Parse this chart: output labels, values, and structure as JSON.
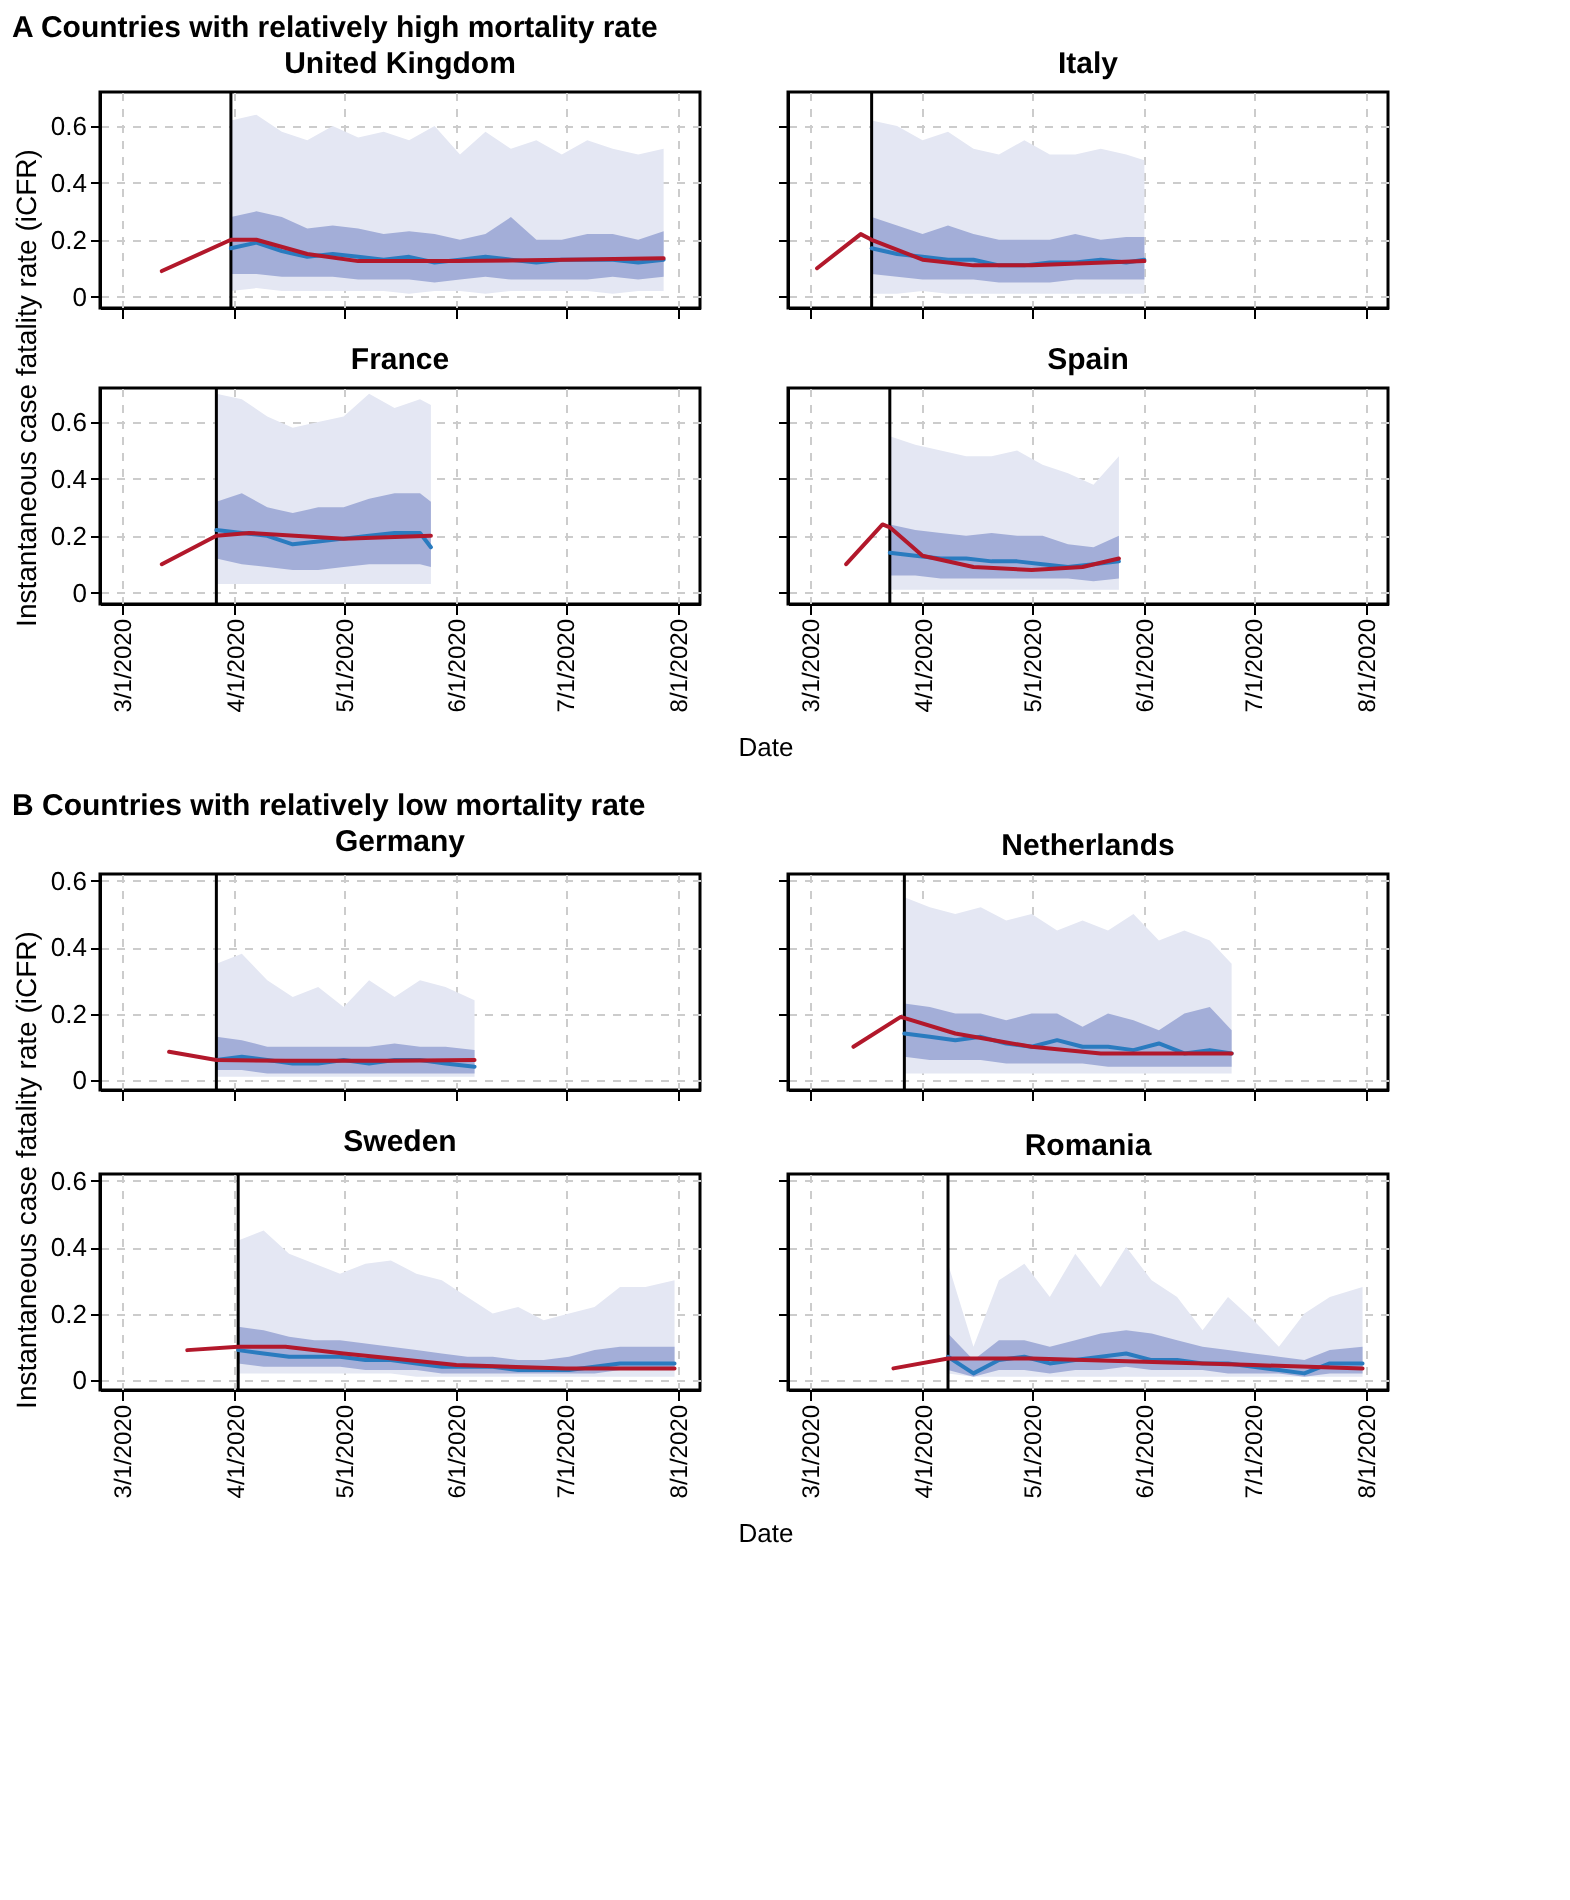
{
  "chart_data": [
    {
      "type": "line",
      "title": "United Kingdom",
      "annotations": [
        "A Countries with relatively high mortality rate"
      ],
      "ylabel": "Instantaneous case fatality rate (iCFR)",
      "tick_labels": "y",
      "grid": true,
      "xlim": [
        "2020-02-24",
        "2020-08-07"
      ],
      "ylim": [
        -0.04,
        0.72
      ],
      "xticks": [
        {
          "value": "2020-03-01",
          "label": null
        },
        {
          "value": "2020-04-01",
          "label": null
        },
        {
          "value": "2020-05-01",
          "label": null
        },
        {
          "value": "2020-06-01",
          "label": null
        },
        {
          "value": "2020-07-01",
          "label": null
        },
        {
          "value": "2020-08-01",
          "label": null
        }
      ],
      "yticks": [
        0,
        0.2,
        0.4,
        0.6
      ],
      "ref_lines": [
        {
          "axis": "x",
          "value": "2020-03-31",
          "color": "#000000"
        }
      ],
      "series": [
        {
          "type": "area",
          "color": "#e4e7f3",
          "x": [
            "2020-03-31",
            "2020-04-07",
            "2020-04-14",
            "2020-04-21",
            "2020-04-28",
            "2020-05-05",
            "2020-05-12",
            "2020-05-19",
            "2020-05-26",
            "2020-06-02",
            "2020-06-09",
            "2020-06-16",
            "2020-06-23",
            "2020-06-30",
            "2020-07-07",
            "2020-07-14",
            "2020-07-21",
            "2020-07-28"
          ],
          "values": [
            null,
            null,
            null,
            null,
            null,
            null,
            null,
            null,
            null,
            null,
            null,
            null,
            null,
            null,
            null,
            null,
            null,
            null
          ],
          "lower": [
            0.02,
            0.03,
            0.02,
            0.02,
            0.02,
            0.02,
            0.02,
            0.01,
            0.02,
            0.02,
            0.01,
            0.02,
            0.02,
            0.02,
            0.02,
            0.01,
            0.02,
            0.02
          ],
          "upper": [
            0.62,
            0.64,
            0.58,
            0.55,
            0.6,
            0.56,
            0.58,
            0.55,
            0.6,
            0.5,
            0.58,
            0.52,
            0.55,
            0.5,
            0.55,
            0.52,
            0.5,
            0.52
          ]
        },
        {
          "type": "area",
          "color": "#a3aed8",
          "x": [
            "2020-03-31",
            "2020-04-07",
            "2020-04-14",
            "2020-04-21",
            "2020-04-28",
            "2020-05-05",
            "2020-05-12",
            "2020-05-19",
            "2020-05-26",
            "2020-06-02",
            "2020-06-09",
            "2020-06-16",
            "2020-06-23",
            "2020-06-30",
            "2020-07-07",
            "2020-07-14",
            "2020-07-21",
            "2020-07-28"
          ],
          "values": [
            null,
            null,
            null,
            null,
            null,
            null,
            null,
            null,
            null,
            null,
            null,
            null,
            null,
            null,
            null,
            null,
            null,
            null
          ],
          "lower": [
            0.08,
            0.08,
            0.07,
            0.07,
            0.07,
            0.06,
            0.06,
            0.06,
            0.05,
            0.06,
            0.07,
            0.06,
            0.06,
            0.06,
            0.06,
            0.07,
            0.06,
            0.07
          ],
          "upper": [
            0.28,
            0.3,
            0.28,
            0.24,
            0.25,
            0.24,
            0.22,
            0.23,
            0.22,
            0.2,
            0.22,
            0.28,
            0.2,
            0.2,
            0.22,
            0.22,
            0.2,
            0.23
          ]
        },
        {
          "type": "line",
          "color": "#2a7bbf",
          "x": [
            "2020-03-31",
            "2020-04-07",
            "2020-04-14",
            "2020-04-21",
            "2020-04-28",
            "2020-05-05",
            "2020-05-12",
            "2020-05-19",
            "2020-05-26",
            "2020-06-02",
            "2020-06-09",
            "2020-06-16",
            "2020-06-23",
            "2020-06-30",
            "2020-07-07",
            "2020-07-14",
            "2020-07-21",
            "2020-07-28"
          ],
          "values": [
            0.17,
            0.19,
            0.16,
            0.14,
            0.15,
            0.14,
            0.13,
            0.14,
            0.12,
            0.13,
            0.14,
            0.13,
            0.12,
            0.13,
            0.13,
            0.13,
            0.12,
            0.13
          ]
        },
        {
          "type": "line",
          "color": "#b2182b",
          "x": [
            "2020-03-12",
            "2020-03-31",
            "2020-04-07",
            "2020-04-21",
            "2020-05-05",
            "2020-06-01",
            "2020-07-01",
            "2020-07-28"
          ],
          "values": [
            0.09,
            0.2,
            0.2,
            0.15,
            0.125,
            0.125,
            0.13,
            0.135
          ]
        }
      ]
    },
    {
      "type": "line",
      "title": "Italy",
      "tick_labels": false,
      "grid": true,
      "xlim": [
        "2020-02-24",
        "2020-08-07"
      ],
      "ylim": [
        -0.04,
        0.72
      ],
      "xticks": [
        {
          "value": "2020-03-01",
          "label": null
        },
        {
          "value": "2020-04-01",
          "label": null
        },
        {
          "value": "2020-05-01",
          "label": null
        },
        {
          "value": "2020-06-01",
          "label": null
        },
        {
          "value": "2020-07-01",
          "label": null
        },
        {
          "value": "2020-08-01",
          "label": null
        }
      ],
      "yticks": [
        0,
        0.2,
        0.4,
        0.6
      ],
      "ref_lines": [
        {
          "axis": "x",
          "value": "2020-03-18",
          "color": "#000000"
        }
      ],
      "series": [
        {
          "type": "area",
          "color": "#e4e7f3",
          "x": [
            "2020-03-18",
            "2020-03-25",
            "2020-04-01",
            "2020-04-08",
            "2020-04-15",
            "2020-04-22",
            "2020-04-29",
            "2020-05-06",
            "2020-05-13",
            "2020-05-20",
            "2020-05-27",
            "2020-06-01"
          ],
          "values": [
            null,
            null,
            null,
            null,
            null,
            null,
            null,
            null,
            null,
            null,
            null,
            null
          ],
          "lower": [
            0.01,
            0.01,
            0.02,
            0.01,
            0.01,
            0.01,
            0.01,
            0.01,
            0.01,
            0.01,
            0.01,
            0.01
          ],
          "upper": [
            0.62,
            0.6,
            0.55,
            0.58,
            0.52,
            0.5,
            0.55,
            0.5,
            0.5,
            0.52,
            0.5,
            0.48
          ]
        },
        {
          "type": "area",
          "color": "#a3aed8",
          "x": [
            "2020-03-18",
            "2020-03-25",
            "2020-04-01",
            "2020-04-08",
            "2020-04-15",
            "2020-04-22",
            "2020-04-29",
            "2020-05-06",
            "2020-05-13",
            "2020-05-20",
            "2020-05-27",
            "2020-06-01"
          ],
          "values": [
            null,
            null,
            null,
            null,
            null,
            null,
            null,
            null,
            null,
            null,
            null,
            null
          ],
          "lower": [
            0.08,
            0.07,
            0.06,
            0.06,
            0.06,
            0.05,
            0.05,
            0.05,
            0.06,
            0.06,
            0.06,
            0.06
          ],
          "upper": [
            0.28,
            0.25,
            0.22,
            0.25,
            0.22,
            0.2,
            0.2,
            0.2,
            0.22,
            0.2,
            0.21,
            0.21
          ]
        },
        {
          "type": "line",
          "color": "#2a7bbf",
          "x": [
            "2020-03-18",
            "2020-03-25",
            "2020-04-01",
            "2020-04-08",
            "2020-04-15",
            "2020-04-22",
            "2020-04-29",
            "2020-05-06",
            "2020-05-13",
            "2020-05-20",
            "2020-05-27",
            "2020-06-01"
          ],
          "values": [
            0.17,
            0.15,
            0.14,
            0.13,
            0.13,
            0.11,
            0.11,
            0.12,
            0.12,
            0.13,
            0.12,
            0.13
          ]
        },
        {
          "type": "line",
          "color": "#b2182b",
          "x": [
            "2020-03-03",
            "2020-03-15",
            "2020-03-18",
            "2020-04-01",
            "2020-04-15",
            "2020-05-01",
            "2020-06-01"
          ],
          "values": [
            0.1,
            0.22,
            0.2,
            0.13,
            0.11,
            0.11,
            0.125
          ]
        }
      ]
    },
    {
      "type": "line",
      "title": "France",
      "grid": true,
      "xlim": [
        "2020-02-24",
        "2020-08-07"
      ],
      "ylim": [
        -0.04,
        0.72
      ],
      "xticks": [
        {
          "value": "2020-03-01",
          "label": "3/1/2020"
        },
        {
          "value": "2020-04-01",
          "label": "4/1/2020"
        },
        {
          "value": "2020-05-01",
          "label": "5/1/2020"
        },
        {
          "value": "2020-06-01",
          "label": "6/1/2020"
        },
        {
          "value": "2020-07-01",
          "label": "7/1/2020"
        },
        {
          "value": "2020-08-01",
          "label": "8/1/2020"
        }
      ],
      "yticks": [
        0,
        0.2,
        0.4,
        0.6
      ],
      "ref_lines": [
        {
          "axis": "x",
          "value": "2020-03-27",
          "color": "#000000"
        }
      ],
      "series": [
        {
          "type": "area",
          "color": "#e4e7f3",
          "x": [
            "2020-03-27",
            "2020-04-03",
            "2020-04-10",
            "2020-04-17",
            "2020-04-24",
            "2020-05-01",
            "2020-05-08",
            "2020-05-15",
            "2020-05-22",
            "2020-05-25"
          ],
          "values": [
            null,
            null,
            null,
            null,
            null,
            null,
            null,
            null,
            null,
            null
          ],
          "lower": [
            0.03,
            0.03,
            0.03,
            0.03,
            0.03,
            0.03,
            0.03,
            0.03,
            0.03,
            0.03
          ],
          "upper": [
            0.7,
            0.68,
            0.62,
            0.58,
            0.6,
            0.62,
            0.7,
            0.65,
            0.68,
            0.66
          ]
        },
        {
          "type": "area",
          "color": "#a3aed8",
          "x": [
            "2020-03-27",
            "2020-04-03",
            "2020-04-10",
            "2020-04-17",
            "2020-04-24",
            "2020-05-01",
            "2020-05-08",
            "2020-05-15",
            "2020-05-22",
            "2020-05-25"
          ],
          "values": [
            null,
            null,
            null,
            null,
            null,
            null,
            null,
            null,
            null,
            null
          ],
          "lower": [
            0.12,
            0.1,
            0.09,
            0.08,
            0.08,
            0.09,
            0.1,
            0.1,
            0.1,
            0.09
          ],
          "upper": [
            0.32,
            0.35,
            0.3,
            0.28,
            0.3,
            0.3,
            0.33,
            0.35,
            0.35,
            0.32
          ]
        },
        {
          "type": "line",
          "color": "#2a7bbf",
          "x": [
            "2020-03-27",
            "2020-04-03",
            "2020-04-10",
            "2020-04-17",
            "2020-04-24",
            "2020-05-01",
            "2020-05-08",
            "2020-05-15",
            "2020-05-22",
            "2020-05-25"
          ],
          "values": [
            0.22,
            0.21,
            0.2,
            0.17,
            0.18,
            0.19,
            0.2,
            0.21,
            0.21,
            0.16
          ]
        },
        {
          "type": "line",
          "color": "#b2182b",
          "x": [
            "2020-03-12",
            "2020-03-27",
            "2020-04-05",
            "2020-05-01",
            "2020-05-25"
          ],
          "values": [
            0.1,
            0.2,
            0.21,
            0.19,
            0.2
          ]
        }
      ]
    },
    {
      "type": "line",
      "title": "Spain",
      "tick_labels": "x",
      "grid": true,
      "xlabel": "Date",
      "xlim": [
        "2020-02-24",
        "2020-08-07"
      ],
      "ylim": [
        -0.04,
        0.72
      ],
      "xticks": [
        {
          "value": "2020-03-01",
          "label": "3/1/2020"
        },
        {
          "value": "2020-04-01",
          "label": "4/1/2020"
        },
        {
          "value": "2020-05-01",
          "label": "5/1/2020"
        },
        {
          "value": "2020-06-01",
          "label": "6/1/2020"
        },
        {
          "value": "2020-07-01",
          "label": "7/1/2020"
        },
        {
          "value": "2020-08-01",
          "label": "8/1/2020"
        }
      ],
      "yticks": [
        0,
        0.2,
        0.4,
        0.6
      ],
      "ref_lines": [
        {
          "axis": "x",
          "value": "2020-03-23",
          "color": "#000000"
        }
      ],
      "series": [
        {
          "type": "area",
          "color": "#e4e7f3",
          "x": [
            "2020-03-23",
            "2020-03-30",
            "2020-04-06",
            "2020-04-13",
            "2020-04-20",
            "2020-04-27",
            "2020-05-04",
            "2020-05-11",
            "2020-05-18",
            "2020-05-25"
          ],
          "values": [
            null,
            null,
            null,
            null,
            null,
            null,
            null,
            null,
            null,
            null
          ],
          "lower": [
            0.01,
            0.01,
            0.01,
            0.01,
            0.01,
            0.01,
            0.01,
            0.01,
            0.01,
            0.01
          ],
          "upper": [
            0.55,
            0.52,
            0.5,
            0.48,
            0.48,
            0.5,
            0.45,
            0.42,
            0.38,
            0.48
          ]
        },
        {
          "type": "area",
          "color": "#a3aed8",
          "x": [
            "2020-03-23",
            "2020-03-30",
            "2020-04-06",
            "2020-04-13",
            "2020-04-20",
            "2020-04-27",
            "2020-05-04",
            "2020-05-11",
            "2020-05-18",
            "2020-05-25"
          ],
          "values": [
            null,
            null,
            null,
            null,
            null,
            null,
            null,
            null,
            null,
            null
          ],
          "lower": [
            0.06,
            0.06,
            0.05,
            0.05,
            0.05,
            0.05,
            0.05,
            0.05,
            0.04,
            0.05
          ],
          "upper": [
            0.24,
            0.22,
            0.21,
            0.2,
            0.21,
            0.2,
            0.2,
            0.17,
            0.16,
            0.2
          ]
        },
        {
          "type": "line",
          "color": "#2a7bbf",
          "x": [
            "2020-03-23",
            "2020-03-30",
            "2020-04-06",
            "2020-04-13",
            "2020-04-20",
            "2020-04-27",
            "2020-05-04",
            "2020-05-11",
            "2020-05-18",
            "2020-05-25"
          ],
          "values": [
            0.14,
            0.13,
            0.12,
            0.12,
            0.11,
            0.11,
            0.1,
            0.09,
            0.1,
            0.11
          ]
        },
        {
          "type": "line",
          "color": "#b2182b",
          "x": [
            "2020-03-11",
            "2020-03-21",
            "2020-03-23",
            "2020-04-01",
            "2020-04-15",
            "2020-05-01",
            "2020-05-15",
            "2020-05-25"
          ],
          "values": [
            0.1,
            0.24,
            0.23,
            0.13,
            0.09,
            0.08,
            0.09,
            0.12
          ]
        }
      ]
    },
    {
      "type": "line",
      "title": "Germany",
      "annotations": [
        "B Countries with relatively low mortality rate"
      ],
      "ylabel": "Instantaneous case fatality rate (iCFR)",
      "tick_labels": "y",
      "grid": true,
      "xlim": [
        "2020-02-24",
        "2020-08-07"
      ],
      "ylim": [
        -0.03,
        0.62
      ],
      "xticks": [
        {
          "value": "2020-03-01",
          "label": null
        },
        {
          "value": "2020-04-01",
          "label": null
        },
        {
          "value": "2020-05-01",
          "label": null
        },
        {
          "value": "2020-06-01",
          "label": null
        },
        {
          "value": "2020-07-01",
          "label": null
        },
        {
          "value": "2020-08-01",
          "label": null
        }
      ],
      "yticks": [
        0,
        0.2,
        0.4,
        0.6
      ],
      "ref_lines": [
        {
          "axis": "x",
          "value": "2020-03-27",
          "color": "#000000"
        }
      ],
      "series": [
        {
          "type": "area",
          "color": "#e4e7f3",
          "x": [
            "2020-03-27",
            "2020-04-03",
            "2020-04-10",
            "2020-04-17",
            "2020-04-24",
            "2020-05-01",
            "2020-05-08",
            "2020-05-15",
            "2020-05-22",
            "2020-05-29",
            "2020-06-06"
          ],
          "values": [
            null,
            null,
            null,
            null,
            null,
            null,
            null,
            null,
            null,
            null,
            null
          ],
          "lower": [
            0.01,
            0.01,
            0.01,
            0.01,
            0.01,
            0.01,
            0.01,
            0.01,
            0.01,
            0.01,
            0.01
          ],
          "upper": [
            0.35,
            0.38,
            0.3,
            0.25,
            0.28,
            0.22,
            0.3,
            0.25,
            0.3,
            0.28,
            0.24
          ]
        },
        {
          "type": "area",
          "color": "#a3aed8",
          "x": [
            "2020-03-27",
            "2020-04-03",
            "2020-04-10",
            "2020-04-17",
            "2020-04-24",
            "2020-05-01",
            "2020-05-08",
            "2020-05-15",
            "2020-05-22",
            "2020-05-29",
            "2020-06-06"
          ],
          "values": [
            null,
            null,
            null,
            null,
            null,
            null,
            null,
            null,
            null,
            null,
            null
          ],
          "lower": [
            0.03,
            0.03,
            0.02,
            0.02,
            0.02,
            0.02,
            0.02,
            0.02,
            0.02,
            0.02,
            0.02
          ],
          "upper": [
            0.13,
            0.12,
            0.1,
            0.1,
            0.1,
            0.1,
            0.1,
            0.11,
            0.1,
            0.1,
            0.09
          ]
        },
        {
          "type": "line",
          "color": "#2a7bbf",
          "x": [
            "2020-03-27",
            "2020-04-03",
            "2020-04-10",
            "2020-04-17",
            "2020-04-24",
            "2020-05-01",
            "2020-05-08",
            "2020-05-15",
            "2020-05-22",
            "2020-05-29",
            "2020-06-06"
          ],
          "values": [
            0.06,
            0.07,
            0.06,
            0.05,
            0.05,
            0.06,
            0.05,
            0.06,
            0.06,
            0.05,
            0.04
          ]
        },
        {
          "type": "line",
          "color": "#b2182b",
          "x": [
            "2020-03-14",
            "2020-03-27",
            "2020-04-15",
            "2020-05-15",
            "2020-06-06"
          ],
          "values": [
            0.085,
            0.06,
            0.058,
            0.058,
            0.06
          ]
        }
      ]
    },
    {
      "type": "line",
      "title": "Netherlands",
      "tick_labels": false,
      "grid": true,
      "xlim": [
        "2020-02-24",
        "2020-08-07"
      ],
      "ylim": [
        -0.03,
        0.62
      ],
      "xticks": [
        {
          "value": "2020-03-01",
          "label": null
        },
        {
          "value": "2020-04-01",
          "label": null
        },
        {
          "value": "2020-05-01",
          "label": null
        },
        {
          "value": "2020-06-01",
          "label": null
        },
        {
          "value": "2020-07-01",
          "label": null
        },
        {
          "value": "2020-08-01",
          "label": null
        }
      ],
      "yticks": [
        0,
        0.2,
        0.4,
        0.6
      ],
      "ref_lines": [
        {
          "axis": "x",
          "value": "2020-03-27",
          "color": "#000000"
        }
      ],
      "series": [
        {
          "type": "area",
          "color": "#e4e7f3",
          "x": [
            "2020-03-27",
            "2020-04-03",
            "2020-04-10",
            "2020-04-17",
            "2020-04-24",
            "2020-05-01",
            "2020-05-08",
            "2020-05-15",
            "2020-05-22",
            "2020-05-29",
            "2020-06-05",
            "2020-06-12",
            "2020-06-19",
            "2020-06-25"
          ],
          "values": [
            null,
            null,
            null,
            null,
            null,
            null,
            null,
            null,
            null,
            null,
            null,
            null,
            null,
            null
          ],
          "lower": [
            0.02,
            0.02,
            0.02,
            0.02,
            0.02,
            0.02,
            0.02,
            0.02,
            0.02,
            0.02,
            0.02,
            0.02,
            0.02,
            0.02
          ],
          "upper": [
            0.55,
            0.52,
            0.5,
            0.52,
            0.48,
            0.5,
            0.45,
            0.48,
            0.45,
            0.5,
            0.42,
            0.45,
            0.42,
            0.35
          ]
        },
        {
          "type": "area",
          "color": "#a3aed8",
          "x": [
            "2020-03-27",
            "2020-04-03",
            "2020-04-10",
            "2020-04-17",
            "2020-04-24",
            "2020-05-01",
            "2020-05-08",
            "2020-05-15",
            "2020-05-22",
            "2020-05-29",
            "2020-06-05",
            "2020-06-12",
            "2020-06-19",
            "2020-06-25"
          ],
          "values": [
            null,
            null,
            null,
            null,
            null,
            null,
            null,
            null,
            null,
            null,
            null,
            null,
            null,
            null
          ],
          "lower": [
            0.07,
            0.06,
            0.06,
            0.06,
            0.05,
            0.05,
            0.05,
            0.05,
            0.04,
            0.04,
            0.04,
            0.04,
            0.04,
            0.04
          ],
          "upper": [
            0.23,
            0.22,
            0.2,
            0.2,
            0.18,
            0.2,
            0.2,
            0.16,
            0.2,
            0.18,
            0.15,
            0.2,
            0.22,
            0.15
          ]
        },
        {
          "type": "line",
          "color": "#2a7bbf",
          "x": [
            "2020-03-27",
            "2020-04-03",
            "2020-04-10",
            "2020-04-17",
            "2020-04-24",
            "2020-05-01",
            "2020-05-08",
            "2020-05-15",
            "2020-05-22",
            "2020-05-29",
            "2020-06-05",
            "2020-06-12",
            "2020-06-19",
            "2020-06-25"
          ],
          "values": [
            0.14,
            0.13,
            0.12,
            0.13,
            0.11,
            0.1,
            0.12,
            0.1,
            0.1,
            0.09,
            0.11,
            0.08,
            0.09,
            0.08
          ]
        },
        {
          "type": "line",
          "color": "#b2182b",
          "x": [
            "2020-03-13",
            "2020-03-26",
            "2020-04-10",
            "2020-05-01",
            "2020-05-20",
            "2020-06-25"
          ],
          "values": [
            0.1,
            0.19,
            0.14,
            0.1,
            0.08,
            0.08
          ]
        }
      ]
    },
    {
      "type": "line",
      "title": "Sweden",
      "grid": true,
      "xlabel": "Date",
      "xlim": [
        "2020-02-24",
        "2020-08-07"
      ],
      "ylim": [
        -0.03,
        0.62
      ],
      "xticks": [
        {
          "value": "2020-03-01",
          "label": "3/1/2020"
        },
        {
          "value": "2020-04-01",
          "label": "4/1/2020"
        },
        {
          "value": "2020-05-01",
          "label": "5/1/2020"
        },
        {
          "value": "2020-06-01",
          "label": "6/1/2020"
        },
        {
          "value": "2020-07-01",
          "label": "7/1/2020"
        },
        {
          "value": "2020-08-01",
          "label": "8/1/2020"
        }
      ],
      "yticks": [
        0,
        0.2,
        0.4,
        0.6
      ],
      "ref_lines": [
        {
          "axis": "x",
          "value": "2020-04-02",
          "color": "#000000"
        }
      ],
      "series": [
        {
          "type": "area",
          "color": "#e4e7f3",
          "x": [
            "2020-04-02",
            "2020-04-09",
            "2020-04-16",
            "2020-04-23",
            "2020-04-30",
            "2020-05-07",
            "2020-05-14",
            "2020-05-21",
            "2020-05-28",
            "2020-06-04",
            "2020-06-11",
            "2020-06-18",
            "2020-06-25",
            "2020-07-02",
            "2020-07-09",
            "2020-07-16",
            "2020-07-23",
            "2020-07-31"
          ],
          "values": [
            null,
            null,
            null,
            null,
            null,
            null,
            null,
            null,
            null,
            null,
            null,
            null,
            null,
            null,
            null,
            null,
            null,
            null
          ],
          "lower": [
            0.02,
            0.02,
            0.02,
            0.02,
            0.02,
            0.02,
            0.02,
            0.01,
            0.01,
            0.01,
            0.01,
            0.01,
            0.01,
            0.01,
            0.01,
            0.01,
            0.01,
            0.01
          ],
          "upper": [
            0.42,
            0.45,
            0.38,
            0.35,
            0.32,
            0.35,
            0.36,
            0.32,
            0.3,
            0.25,
            0.2,
            0.22,
            0.18,
            0.2,
            0.22,
            0.28,
            0.28,
            0.3
          ]
        },
        {
          "type": "area",
          "color": "#a3aed8",
          "x": [
            "2020-04-02",
            "2020-04-09",
            "2020-04-16",
            "2020-04-23",
            "2020-04-30",
            "2020-05-07",
            "2020-05-14",
            "2020-05-21",
            "2020-05-28",
            "2020-06-04",
            "2020-06-11",
            "2020-06-18",
            "2020-06-25",
            "2020-07-02",
            "2020-07-09",
            "2020-07-16",
            "2020-07-23",
            "2020-07-31"
          ],
          "values": [
            null,
            null,
            null,
            null,
            null,
            null,
            null,
            null,
            null,
            null,
            null,
            null,
            null,
            null,
            null,
            null,
            null,
            null
          ],
          "lower": [
            0.05,
            0.04,
            0.04,
            0.04,
            0.04,
            0.03,
            0.03,
            0.03,
            0.02,
            0.02,
            0.02,
            0.02,
            0.02,
            0.02,
            0.02,
            0.03,
            0.03,
            0.03
          ],
          "upper": [
            0.16,
            0.15,
            0.13,
            0.12,
            0.12,
            0.11,
            0.1,
            0.09,
            0.08,
            0.07,
            0.07,
            0.06,
            0.06,
            0.07,
            0.09,
            0.1,
            0.1,
            0.1
          ]
        },
        {
          "type": "line",
          "color": "#2a7bbf",
          "x": [
            "2020-04-02",
            "2020-04-09",
            "2020-04-16",
            "2020-04-23",
            "2020-04-30",
            "2020-05-07",
            "2020-05-14",
            "2020-05-21",
            "2020-05-28",
            "2020-06-04",
            "2020-06-11",
            "2020-06-18",
            "2020-06-25",
            "2020-07-02",
            "2020-07-09",
            "2020-07-16",
            "2020-07-23",
            "2020-07-31"
          ],
          "values": [
            0.09,
            0.08,
            0.07,
            0.07,
            0.07,
            0.06,
            0.06,
            0.05,
            0.04,
            0.04,
            0.04,
            0.03,
            0.03,
            0.03,
            0.04,
            0.05,
            0.05,
            0.05
          ]
        },
        {
          "type": "line",
          "color": "#b2182b",
          "x": [
            "2020-03-19",
            "2020-04-02",
            "2020-04-15",
            "2020-05-01",
            "2020-06-01",
            "2020-07-01",
            "2020-07-31"
          ],
          "values": [
            0.09,
            0.1,
            0.1,
            0.08,
            0.045,
            0.035,
            0.035
          ]
        }
      ]
    },
    {
      "type": "line",
      "title": "Romania",
      "tick_labels": "x",
      "grid": true,
      "xlim": [
        "2020-02-24",
        "2020-08-07"
      ],
      "ylim": [
        -0.03,
        0.62
      ],
      "xticks": [
        {
          "value": "2020-03-01",
          "label": "3/1/2020"
        },
        {
          "value": "2020-04-01",
          "label": "4/1/2020"
        },
        {
          "value": "2020-05-01",
          "label": "5/1/2020"
        },
        {
          "value": "2020-06-01",
          "label": "6/1/2020"
        },
        {
          "value": "2020-07-01",
          "label": "7/1/2020"
        },
        {
          "value": "2020-08-01",
          "label": "8/1/2020"
        }
      ],
      "yticks": [
        0,
        0.2,
        0.4,
        0.6
      ],
      "ref_lines": [
        {
          "axis": "x",
          "value": "2020-04-08",
          "color": "#000000"
        }
      ],
      "series": [
        {
          "type": "area",
          "color": "#e4e7f3",
          "x": [
            "2020-04-08",
            "2020-04-15",
            "2020-04-22",
            "2020-04-29",
            "2020-05-06",
            "2020-05-13",
            "2020-05-20",
            "2020-05-27",
            "2020-06-03",
            "2020-06-10",
            "2020-06-17",
            "2020-06-24",
            "2020-07-01",
            "2020-07-08",
            "2020-07-15",
            "2020-07-22",
            "2020-07-31"
          ],
          "values": [
            null,
            null,
            null,
            null,
            null,
            null,
            null,
            null,
            null,
            null,
            null,
            null,
            null,
            null,
            null,
            null,
            null
          ],
          "lower": [
            0.02,
            0.01,
            0.01,
            0.01,
            0.01,
            0.01,
            0.01,
            0.01,
            0.01,
            0.01,
            0.01,
            0.01,
            0.01,
            0.01,
            0.01,
            0.01,
            0.01
          ],
          "upper": [
            0.35,
            0.1,
            0.3,
            0.35,
            0.25,
            0.38,
            0.28,
            0.4,
            0.3,
            0.25,
            0.15,
            0.25,
            0.18,
            0.1,
            0.2,
            0.25,
            0.28
          ]
        },
        {
          "type": "area",
          "color": "#a3aed8",
          "x": [
            "2020-04-08",
            "2020-04-15",
            "2020-04-22",
            "2020-04-29",
            "2020-05-06",
            "2020-05-13",
            "2020-05-20",
            "2020-05-27",
            "2020-06-03",
            "2020-06-10",
            "2020-06-17",
            "2020-06-24",
            "2020-07-01",
            "2020-07-08",
            "2020-07-15",
            "2020-07-22",
            "2020-07-31"
          ],
          "values": [
            null,
            null,
            null,
            null,
            null,
            null,
            null,
            null,
            null,
            null,
            null,
            null,
            null,
            null,
            null,
            null,
            null
          ],
          "lower": [
            0.03,
            0.01,
            0.03,
            0.03,
            0.02,
            0.03,
            0.03,
            0.04,
            0.03,
            0.03,
            0.03,
            0.02,
            0.02,
            0.02,
            0.01,
            0.02,
            0.02
          ],
          "upper": [
            0.14,
            0.06,
            0.12,
            0.12,
            0.1,
            0.12,
            0.14,
            0.15,
            0.14,
            0.12,
            0.1,
            0.09,
            0.08,
            0.07,
            0.06,
            0.09,
            0.1
          ]
        },
        {
          "type": "line",
          "color": "#2a7bbf",
          "x": [
            "2020-04-08",
            "2020-04-15",
            "2020-04-22",
            "2020-04-29",
            "2020-05-06",
            "2020-05-13",
            "2020-05-20",
            "2020-05-27",
            "2020-06-03",
            "2020-06-10",
            "2020-06-17",
            "2020-06-24",
            "2020-07-01",
            "2020-07-08",
            "2020-07-15",
            "2020-07-22",
            "2020-07-31"
          ],
          "values": [
            0.07,
            0.02,
            0.06,
            0.07,
            0.05,
            0.06,
            0.07,
            0.08,
            0.06,
            0.06,
            0.05,
            0.05,
            0.04,
            0.03,
            0.02,
            0.05,
            0.05
          ]
        },
        {
          "type": "line",
          "color": "#b2182b",
          "x": [
            "2020-03-24",
            "2020-04-08",
            "2020-05-01",
            "2020-06-01",
            "2020-07-01",
            "2020-07-31"
          ],
          "values": [
            0.035,
            0.065,
            0.065,
            0.055,
            0.045,
            0.035
          ]
        }
      ]
    }
  ]
}
